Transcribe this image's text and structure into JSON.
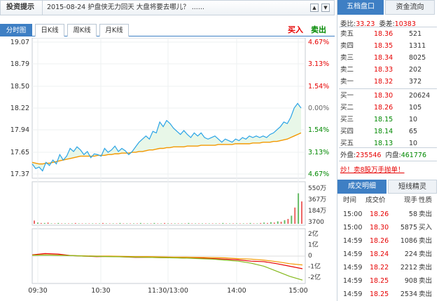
{
  "news": {
    "tag": "投资提示",
    "headline": "2015-08-24  护盘侠无力回天 大盘将要去哪儿？ ......",
    "nav": [
      "▲",
      "▼"
    ]
  },
  "chart_tabs": [
    "分时图",
    "日K线",
    "周K线",
    "月K线"
  ],
  "actions": {
    "buy": "买入",
    "sell": "卖出"
  },
  "chart_data": {
    "type": "line",
    "x_ticks": [
      "09:30",
      "10:30",
      "11:30/13:00",
      "14:00",
      "15:00"
    ],
    "price_ticks": [
      "19.07",
      "18.79",
      "18.50",
      "18.22",
      "17.94",
      "17.65",
      "17.37"
    ],
    "price_values": [
      19.07,
      18.79,
      18.5,
      18.22,
      17.94,
      17.65,
      17.37
    ],
    "pct_ticks": [
      "4.67%",
      "3.13%",
      "1.54%",
      "0.00%",
      "1.54%",
      "3.13%",
      "4.67%"
    ],
    "volume_ticks": [
      "550万",
      "367万",
      "184万",
      "3700"
    ],
    "flow_ticks": [
      "2亿",
      "1亿",
      "0",
      "-1亿",
      "-2亿"
    ],
    "ylim": [
      17.37,
      19.07
    ],
    "series": [
      {
        "name": "价格",
        "color": "#2aa3e6",
        "values": [
          17.5,
          17.44,
          17.46,
          17.41,
          17.52,
          17.48,
          17.55,
          17.5,
          17.62,
          17.55,
          17.6,
          17.7,
          17.66,
          17.72,
          17.68,
          17.62,
          17.66,
          17.58,
          17.63,
          17.62,
          17.6,
          17.7,
          17.65,
          17.68,
          17.73,
          17.66,
          17.7,
          17.67,
          17.62,
          17.66,
          17.72,
          17.78,
          17.82,
          17.86,
          17.82,
          17.92,
          17.9,
          18.04,
          17.98,
          18.06,
          18.02,
          17.96,
          17.92,
          17.88,
          17.93,
          17.88,
          17.84,
          17.9,
          17.86,
          17.9,
          17.84,
          17.82,
          17.84,
          17.86,
          17.82,
          17.78,
          17.82,
          17.8,
          17.78,
          17.82,
          17.8,
          17.84,
          17.82,
          17.86,
          17.84,
          17.86,
          17.84,
          17.86,
          17.84,
          17.88,
          17.9,
          17.94,
          17.98,
          18.04,
          18.02,
          18.1,
          18.22,
          18.28,
          18.22
        ]
      },
      {
        "name": "均价",
        "color": "#f39800",
        "values": [
          17.52,
          17.51,
          17.5,
          17.5,
          17.51,
          17.51,
          17.52,
          17.53,
          17.54,
          17.55,
          17.56,
          17.57,
          17.58,
          17.59,
          17.6,
          17.6,
          17.6,
          17.6,
          17.6,
          17.61,
          17.61,
          17.61,
          17.62,
          17.62,
          17.63,
          17.63,
          17.64,
          17.64,
          17.64,
          17.65,
          17.65,
          17.66,
          17.66,
          17.67,
          17.68,
          17.68,
          17.69,
          17.7,
          17.7,
          17.71,
          17.71,
          17.72,
          17.72,
          17.72,
          17.72,
          17.73,
          17.73,
          17.73,
          17.73,
          17.74,
          17.74,
          17.74,
          17.74,
          17.74,
          17.75,
          17.75,
          17.75,
          17.75,
          17.75,
          17.76,
          17.76,
          17.76,
          17.76,
          17.76,
          17.77,
          17.77,
          17.77,
          17.78,
          17.78,
          17.78,
          17.79,
          17.79,
          17.8,
          17.81,
          17.82,
          17.84,
          17.86,
          17.88,
          17.9
        ]
      }
    ],
    "volume": [
      0.08,
      0.03,
      0.02,
      0.02,
      0.03,
      0.01,
      0.01,
      0.02,
      0.01,
      0.01,
      0.01,
      0.01,
      0.02,
      0.01,
      0.01,
      0.01,
      0.01,
      0.01,
      0.01,
      0.01,
      0.02,
      0.01,
      0.01,
      0.01,
      0.01,
      0.02,
      0.01,
      0.01,
      0.01,
      0.01,
      0.01,
      0.02,
      0.01,
      0.01,
      0.01,
      0.02,
      0.01,
      0.01,
      0.02,
      0.01,
      0.01,
      0.01,
      0.01,
      0.01,
      0.01,
      0.02,
      0.01,
      0.01,
      0.01,
      0.01,
      0.01,
      0.01,
      0.01,
      0.01,
      0.01,
      0.02,
      0.01,
      0.01,
      0.01,
      0.01,
      0.01,
      0.01,
      0.01,
      0.02,
      0.01,
      0.01,
      0.02,
      0.03,
      0.02,
      0.04,
      0.03,
      0.06,
      0.05,
      0.09,
      0.12,
      0.2,
      0.4,
      0.75,
      0.55
    ],
    "flow_series": [
      {
        "name": "flow1",
        "color": "#e60000",
        "values": [
          0.05,
          0.1,
          0.08,
          0.02,
          0.0,
          -0.02,
          -0.01,
          -0.03,
          -0.05,
          -0.05,
          -0.06,
          -0.06,
          -0.08,
          -0.08,
          -0.1,
          -0.12,
          -0.15,
          -0.2,
          -0.22,
          -0.3,
          -0.4,
          -0.5
        ]
      },
      {
        "name": "flow2",
        "color": "#f39800",
        "values": [
          0.04,
          0.05,
          0.04,
          0.02,
          0.01,
          0.0,
          0.0,
          -0.01,
          -0.02,
          -0.02,
          -0.03,
          -0.04,
          -0.04,
          -0.05,
          -0.06,
          -0.07,
          -0.1,
          -0.12,
          -0.16,
          -0.22,
          -0.3,
          -0.35
        ]
      },
      {
        "name": "flow3",
        "color": "#84b81a",
        "values": [
          0.03,
          0.04,
          0.03,
          0.02,
          0.0,
          -0.01,
          -0.02,
          -0.03,
          -0.04,
          -0.05,
          -0.06,
          -0.07,
          -0.08,
          -0.1,
          -0.12,
          -0.16,
          -0.2,
          -0.28,
          -0.4,
          -0.6,
          -0.8,
          -0.95
        ]
      }
    ]
  },
  "order_book": {
    "tabs": [
      "五档盘口",
      "资金流向"
    ],
    "wei_bi_label": "委比:",
    "wei_bi_value": "33.23",
    "wei_cha_label": "委差:",
    "wei_cha_value": "10383",
    "asks": [
      {
        "label": "卖五",
        "price": "18.36",
        "vol": "521"
      },
      {
        "label": "卖四",
        "price": "18.35",
        "vol": "1311"
      },
      {
        "label": "卖三",
        "price": "18.34",
        "vol": "8025"
      },
      {
        "label": "卖二",
        "price": "18.33",
        "vol": "202"
      },
      {
        "label": "卖一",
        "price": "18.32",
        "vol": "372"
      }
    ],
    "bids": [
      {
        "label": "买一",
        "price": "18.30",
        "vol": "20624",
        "color": "red"
      },
      {
        "label": "买二",
        "price": "18.26",
        "vol": "105",
        "color": "red"
      },
      {
        "label": "买三",
        "price": "18.15",
        "vol": "10",
        "color": "green"
      },
      {
        "label": "买四",
        "price": "18.14",
        "vol": "65",
        "color": "green"
      },
      {
        "label": "买五",
        "price": "18.13",
        "vol": "10",
        "color": "green"
      }
    ],
    "outer_label": "外盘:",
    "outer_value": "235546",
    "inner_label": "内盘:",
    "inner_value": "461776",
    "alert": "炒！卖8股万手抛单！"
  },
  "trades": {
    "tabs": [
      "成交明细",
      "短线精灵"
    ],
    "headers": [
      "时间",
      "成交价",
      "现手",
      "性质"
    ],
    "rows": [
      [
        "15:00",
        "18.26",
        "58",
        "卖出"
      ],
      [
        "15:00",
        "18.30",
        "5875",
        "买入"
      ],
      [
        "14:59",
        "18.26",
        "1086",
        "卖出"
      ],
      [
        "14:59",
        "18.24",
        "224",
        "卖出"
      ],
      [
        "14:59",
        "18.22",
        "2212",
        "卖出"
      ],
      [
        "14:59",
        "18.25",
        "908",
        "卖出"
      ],
      [
        "14:59",
        "18.25",
        "2534",
        "卖出"
      ]
    ]
  }
}
